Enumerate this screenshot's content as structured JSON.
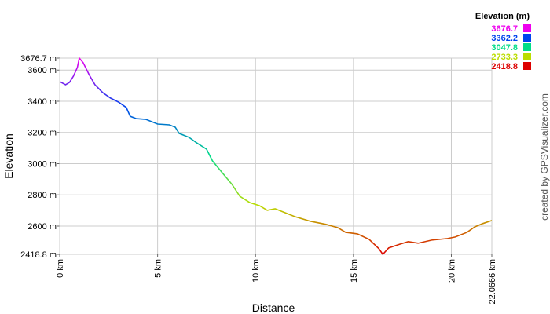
{
  "chart_data": {
    "type": "line",
    "xlabel": "Distance",
    "ylabel": "Elevation",
    "credit": "created by GPSVisualizer.com",
    "legend_title": "Elevation (m)",
    "color_scale": [
      {
        "value": 3676.7,
        "color": "#ee00ee"
      },
      {
        "value": 3362.2,
        "color": "#0044ee"
      },
      {
        "value": 3047.8,
        "color": "#00dd88"
      },
      {
        "value": 2733.3,
        "color": "#bbdd00"
      },
      {
        "value": 2418.8,
        "color": "#dd0000"
      }
    ],
    "grid": true,
    "xlim": [
      0,
      22.0666
    ],
    "ylim": [
      2418.8,
      3676.7
    ],
    "xticks": [
      {
        "value": 0,
        "label": "0 km"
      },
      {
        "value": 5,
        "label": "5 km"
      },
      {
        "value": 10,
        "label": "10 km"
      },
      {
        "value": 15,
        "label": "15 km"
      },
      {
        "value": 20,
        "label": "20 km"
      },
      {
        "value": 22.0666,
        "label": "22.0666 km"
      }
    ],
    "yticks": [
      {
        "value": 2418.8,
        "label": "2418.8 m"
      },
      {
        "value": 2600,
        "label": "2600 m"
      },
      {
        "value": 2800,
        "label": "2800 m"
      },
      {
        "value": 3000,
        "label": "3000 m"
      },
      {
        "value": 3200,
        "label": "3200 m"
      },
      {
        "value": 3400,
        "label": "3400 m"
      },
      {
        "value": 3600,
        "label": "3600 m"
      },
      {
        "value": 3676.7,
        "label": "3676.7 m"
      }
    ],
    "x": [
      0,
      0.3,
      0.5,
      0.7,
      0.9,
      1.0,
      1.2,
      1.5,
      1.8,
      2.2,
      2.6,
      3.0,
      3.4,
      3.6,
      3.9,
      4.4,
      5.0,
      5.6,
      5.9,
      6.1,
      6.6,
      7.0,
      7.5,
      7.8,
      8.3,
      8.8,
      9.2,
      9.7,
      10.2,
      10.6,
      11.0,
      11.5,
      12.0,
      12.8,
      13.6,
      14.2,
      14.6,
      15.2,
      15.8,
      16.3,
      16.5,
      16.8,
      17.4,
      17.8,
      18.3,
      19.0,
      19.8,
      20.2,
      20.8,
      21.2,
      21.6,
      22.0666
    ],
    "values": [
      3526,
      3506,
      3521,
      3561,
      3616,
      3676.7,
      3647,
      3571,
      3506,
      3455,
      3420,
      3395,
      3360,
      3304,
      3289,
      3284,
      3254,
      3249,
      3234,
      3194,
      3169,
      3133,
      3093,
      3018,
      2942,
      2867,
      2791,
      2751,
      2731,
      2701,
      2711,
      2686,
      2661,
      2631,
      2611,
      2590,
      2560,
      2550,
      2515,
      2455,
      2418.8,
      2460,
      2485,
      2500,
      2490,
      2510,
      2520,
      2530,
      2560,
      2595,
      2616,
      2636
    ]
  }
}
